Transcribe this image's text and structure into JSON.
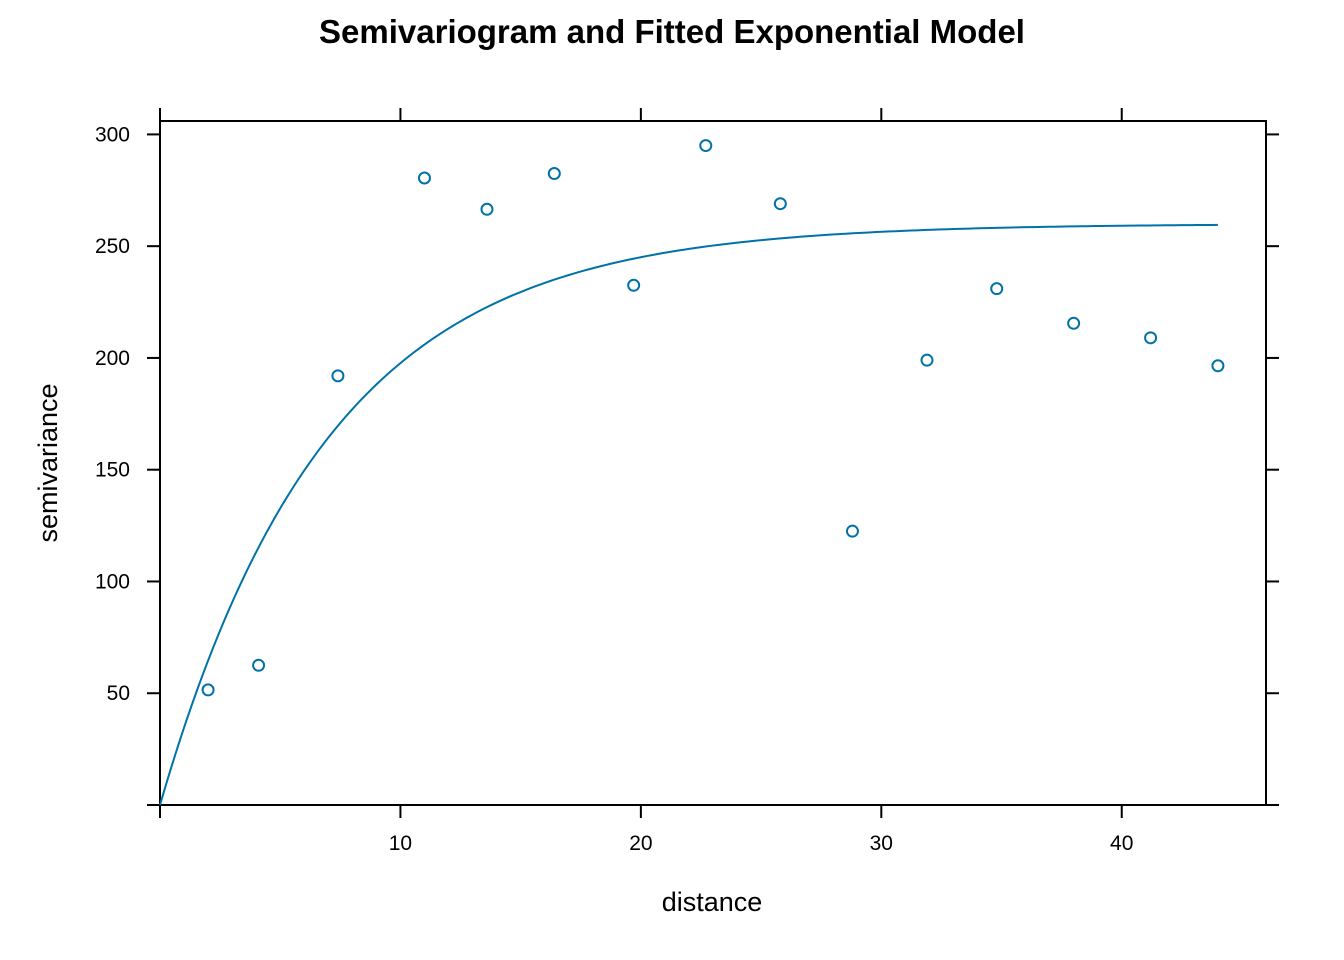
{
  "chart_data": {
    "type": "scatter",
    "title": "Semivariogram and Fitted Exponential Model",
    "xlabel": "distance",
    "ylabel": "semivariance",
    "xlim": [
      0,
      46
    ],
    "ylim": [
      0,
      306
    ],
    "x_ticks": [
      10,
      20,
      30,
      40
    ],
    "y_ticks": [
      50,
      100,
      150,
      200,
      250,
      300
    ],
    "grid": false,
    "points": {
      "x": [
        2.0,
        4.1,
        7.4,
        11.0,
        13.6,
        16.4,
        19.7,
        22.7,
        25.8,
        28.8,
        31.9,
        34.8,
        38.0,
        41.2,
        44.0
      ],
      "y": [
        51.5,
        62.5,
        192,
        280.5,
        266.5,
        282.5,
        232.5,
        295,
        269,
        122.5,
        199,
        231,
        215.5,
        209,
        196.5
      ]
    },
    "model": {
      "name": "exponential",
      "sill": 260,
      "range": 7,
      "x_from": 0,
      "x_to": 44
    },
    "colors": {
      "series": "#0072a8",
      "axes": "#000000"
    }
  }
}
